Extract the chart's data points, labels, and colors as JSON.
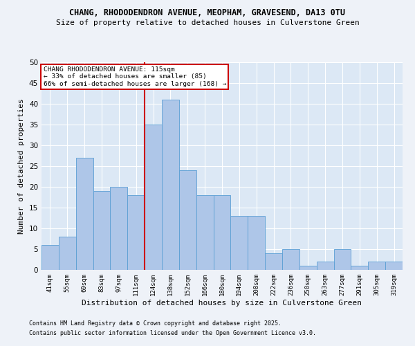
{
  "title1": "CHANG, RHODODENDRON AVENUE, MEOPHAM, GRAVESEND, DA13 0TU",
  "title2": "Size of property relative to detached houses in Culverstone Green",
  "xlabel": "Distribution of detached houses by size in Culverstone Green",
  "ylabel": "Number of detached properties",
  "footer1": "Contains HM Land Registry data © Crown copyright and database right 2025.",
  "footer2": "Contains public sector information licensed under the Open Government Licence v3.0.",
  "bins": [
    "41sqm",
    "55sqm",
    "69sqm",
    "83sqm",
    "97sqm",
    "111sqm",
    "124sqm",
    "138sqm",
    "152sqm",
    "166sqm",
    "180sqm",
    "194sqm",
    "208sqm",
    "222sqm",
    "236sqm",
    "250sqm",
    "263sqm",
    "277sqm",
    "291sqm",
    "305sqm",
    "319sqm"
  ],
  "values": [
    6,
    8,
    27,
    19,
    20,
    18,
    35,
    41,
    24,
    18,
    18,
    13,
    13,
    4,
    5,
    1,
    2,
    5,
    1,
    2,
    2
  ],
  "bar_color": "#aec6e8",
  "bar_edge_color": "#5a9fd4",
  "vline_x_index": 5.5,
  "annotation_title": "CHANG RHODODENDRON AVENUE: 115sqm",
  "annotation_line1": "← 33% of detached houses are smaller (85)",
  "annotation_line2": "66% of semi-detached houses are larger (168) →",
  "box_color": "#cc0000",
  "ylim": [
    0,
    50
  ],
  "yticks": [
    0,
    5,
    10,
    15,
    20,
    25,
    30,
    35,
    40,
    45,
    50
  ],
  "bg_color": "#eef2f8",
  "plot_bg_color": "#dce8f5",
  "grid_color": "#ffffff"
}
